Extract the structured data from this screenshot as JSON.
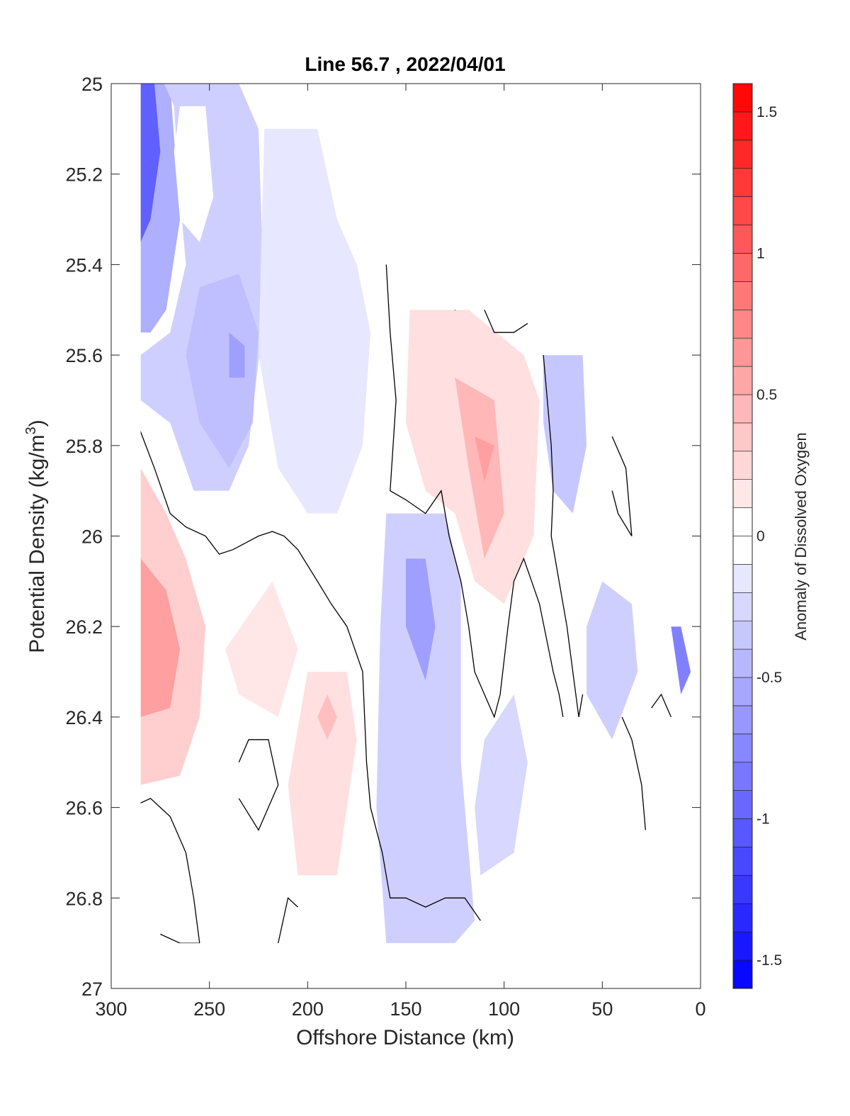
{
  "chart_data": {
    "type": "contour",
    "title": "Line 56.7 , 2022/04/01",
    "xlabel": "Offshore Distance (km)",
    "ylabel": "Potential Density (kg/m",
    "ylabel_sup": "3",
    "ylabel_close": ")",
    "colorbar_label": "Anomaly of Dissolved Oxygen",
    "xlim": [
      300,
      0
    ],
    "x_reversed": true,
    "ylim": [
      25,
      27
    ],
    "y_reversed": true,
    "x_ticks": [
      300,
      250,
      200,
      150,
      100,
      50,
      0
    ],
    "y_ticks": [
      25,
      25.2,
      25.4,
      25.6,
      25.8,
      26,
      26.2,
      26.4,
      26.6,
      26.8,
      27
    ],
    "y_tick_labels": [
      "25",
      "25.2",
      "25.4",
      "25.6",
      "25.8",
      "26",
      "26.2",
      "26.4",
      "26.6",
      "26.8",
      "27"
    ],
    "colorbar": {
      "range": [
        -1.6,
        1.6
      ],
      "step": 0.1,
      "ticks": [
        1.5,
        1,
        0.5,
        0,
        -0.5,
        -1,
        -1.5
      ],
      "tick_labels": [
        "1.5",
        "1",
        "0.5",
        "0",
        "-0.5",
        "-1",
        "-1.5"
      ],
      "color_negative": "#0000ff",
      "color_positive": "#ff0000",
      "color_zero": "#ffffff"
    },
    "grid": false,
    "zero_contour_color": "#000000",
    "regions": [
      {
        "value": -0.5,
        "points": [
          [
            285,
            25
          ],
          [
            270,
            25
          ],
          [
            265,
            25.3
          ],
          [
            272,
            25.5
          ],
          [
            280,
            25.55
          ],
          [
            285,
            25.55
          ]
        ]
      },
      {
        "value": -1.0,
        "points": [
          [
            285,
            25
          ],
          [
            278,
            25
          ],
          [
            275,
            25.15
          ],
          [
            280,
            25.3
          ],
          [
            285,
            25.35
          ]
        ]
      },
      {
        "value": -0.3,
        "points": [
          [
            273,
            25
          ],
          [
            235,
            25
          ],
          [
            225,
            25.1
          ],
          [
            222,
            25.5
          ],
          [
            230,
            25.8
          ],
          [
            240,
            25.9
          ],
          [
            258,
            25.9
          ],
          [
            270,
            25.75
          ],
          [
            285,
            25.7
          ],
          [
            285,
            25.6
          ],
          [
            270,
            25.55
          ],
          [
            262,
            25.4
          ],
          [
            265,
            25.25
          ],
          [
            268,
            25.05
          ]
        ]
      },
      {
        "value": 0.0,
        "points": [
          [
            265,
            25.05
          ],
          [
            252,
            25.05
          ],
          [
            248,
            25.25
          ],
          [
            255,
            25.35
          ],
          [
            265,
            25.3
          ],
          [
            268,
            25.15
          ]
        ]
      },
      {
        "value": -0.4,
        "points": [
          [
            255,
            25.45
          ],
          [
            235,
            25.42
          ],
          [
            225,
            25.55
          ],
          [
            228,
            25.75
          ],
          [
            240,
            25.85
          ],
          [
            255,
            25.75
          ],
          [
            262,
            25.6
          ]
        ]
      },
      {
        "value": -0.6,
        "points": [
          [
            240,
            25.55
          ],
          [
            232,
            25.58
          ],
          [
            232,
            25.65
          ],
          [
            240,
            25.65
          ]
        ]
      },
      {
        "value": -0.15,
        "points": [
          [
            222,
            25.1
          ],
          [
            195,
            25.1
          ],
          [
            185,
            25.3
          ],
          [
            175,
            25.4
          ],
          [
            168,
            25.55
          ],
          [
            172,
            25.8
          ],
          [
            185,
            25.95
          ],
          [
            200,
            25.95
          ],
          [
            215,
            25.85
          ],
          [
            225,
            25.6
          ]
        ]
      },
      {
        "value": 0.3,
        "points": [
          [
            285,
            25.85
          ],
          [
            285,
            26.55
          ],
          [
            265,
            26.53
          ],
          [
            255,
            26.4
          ],
          [
            252,
            26.2
          ],
          [
            262,
            26.05
          ],
          [
            272,
            25.95
          ]
        ]
      },
      {
        "value": 0.6,
        "points": [
          [
            285,
            26.05
          ],
          [
            285,
            26.4
          ],
          [
            270,
            26.38
          ],
          [
            265,
            26.25
          ],
          [
            272,
            26.12
          ]
        ]
      },
      {
        "value": 0.15,
        "points": [
          [
            242,
            26.25
          ],
          [
            218,
            26.1
          ],
          [
            205,
            26.25
          ],
          [
            215,
            26.4
          ],
          [
            235,
            26.35
          ]
        ]
      },
      {
        "value": 0.2,
        "points": [
          [
            200,
            26.3
          ],
          [
            180,
            26.3
          ],
          [
            175,
            26.45
          ],
          [
            185,
            26.75
          ],
          [
            205,
            26.75
          ],
          [
            210,
            26.55
          ]
        ]
      },
      {
        "value": 0.4,
        "points": [
          [
            190,
            26.35
          ],
          [
            185,
            26.4
          ],
          [
            190,
            26.45
          ],
          [
            195,
            26.4
          ]
        ]
      },
      {
        "value": -0.3,
        "points": [
          [
            160,
            25.95
          ],
          [
            130,
            25.95
          ],
          [
            122,
            26.1
          ],
          [
            122,
            26.5
          ],
          [
            115,
            26.85
          ],
          [
            125,
            26.9
          ],
          [
            160,
            26.9
          ],
          [
            165,
            26.6
          ],
          [
            163,
            26.2
          ]
        ]
      },
      {
        "value": -0.6,
        "points": [
          [
            150,
            26.05
          ],
          [
            140,
            26.05
          ],
          [
            135,
            26.2
          ],
          [
            140,
            26.32
          ],
          [
            150,
            26.2
          ]
        ]
      },
      {
        "value": 0.2,
        "points": [
          [
            148,
            25.5
          ],
          [
            118,
            25.5
          ],
          [
            90,
            25.6
          ],
          [
            82,
            25.7
          ],
          [
            85,
            26.0
          ],
          [
            100,
            26.15
          ],
          [
            115,
            26.1
          ],
          [
            125,
            25.95
          ],
          [
            140,
            25.9
          ],
          [
            150,
            25.75
          ]
        ]
      },
      {
        "value": 0.45,
        "points": [
          [
            125,
            25.65
          ],
          [
            105,
            25.7
          ],
          [
            100,
            25.95
          ],
          [
            110,
            26.05
          ],
          [
            118,
            25.85
          ]
        ]
      },
      {
        "value": 0.6,
        "points": [
          [
            115,
            25.78
          ],
          [
            105,
            25.8
          ],
          [
            110,
            25.88
          ]
        ]
      },
      {
        "value": -0.35,
        "points": [
          [
            80,
            25.6
          ],
          [
            60,
            25.6
          ],
          [
            58,
            25.8
          ],
          [
            65,
            25.95
          ],
          [
            75,
            25.9
          ],
          [
            80,
            25.75
          ]
        ]
      },
      {
        "value": -0.3,
        "points": [
          [
            50,
            26.1
          ],
          [
            35,
            26.15
          ],
          [
            32,
            26.3
          ],
          [
            45,
            26.45
          ],
          [
            58,
            26.35
          ],
          [
            58,
            26.2
          ]
        ]
      },
      {
        "value": -0.25,
        "points": [
          [
            110,
            26.45
          ],
          [
            95,
            26.35
          ],
          [
            88,
            26.5
          ],
          [
            95,
            26.7
          ],
          [
            112,
            26.75
          ],
          [
            115,
            26.6
          ]
        ]
      },
      {
        "value": -0.8,
        "points": [
          [
            35,
            25.8
          ],
          [
            25,
            25.9
          ],
          [
            15,
            26.2
          ],
          [
            10,
            26.35
          ],
          [
            5,
            26.3
          ],
          [
            10,
            26.2
          ]
        ]
      }
    ],
    "zero_contours": [
      [
        [
          290,
          25.8
        ],
        [
          285,
          25.77
        ],
        [
          278,
          25.85
        ],
        [
          270,
          25.95
        ],
        [
          262,
          25.98
        ],
        [
          252,
          26.0
        ],
        [
          245,
          26.04
        ],
        [
          238,
          26.03
        ],
        [
          225,
          26.0
        ],
        [
          218,
          25.99
        ],
        [
          212,
          26.0
        ],
        [
          205,
          26.03
        ],
        [
          195,
          26.1
        ],
        [
          188,
          26.15
        ],
        [
          180,
          26.2
        ],
        [
          172,
          26.3
        ],
        [
          170,
          26.5
        ],
        [
          168,
          26.6
        ],
        [
          162,
          26.7
        ],
        [
          158,
          26.8
        ],
        [
          150,
          26.8
        ],
        [
          140,
          26.82
        ],
        [
          130,
          26.8
        ],
        [
          120,
          26.8
        ],
        [
          112,
          26.85
        ]
      ],
      [
        [
          160,
          25.4
        ],
        [
          158,
          25.55
        ],
        [
          155,
          25.7
        ],
        [
          158,
          25.9
        ],
        [
          150,
          25.92
        ],
        [
          140,
          25.95
        ],
        [
          132,
          25.9
        ],
        [
          128,
          26.0
        ],
        [
          122,
          26.1
        ],
        [
          118,
          26.2
        ],
        [
          115,
          26.3
        ],
        [
          110,
          26.35
        ],
        [
          105,
          26.4
        ],
        [
          102,
          26.35
        ],
        [
          98,
          26.2
        ],
        [
          95,
          26.1
        ],
        [
          90,
          26.05
        ],
        [
          82,
          26.15
        ],
        [
          75,
          26.3
        ],
        [
          72,
          26.35
        ],
        [
          70,
          26.4
        ]
      ],
      [
        [
          80,
          25.6
        ],
        [
          78,
          25.7
        ],
        [
          76,
          25.8
        ],
        [
          75,
          25.9
        ],
        [
          76,
          26.0
        ],
        [
          72,
          26.1
        ],
        [
          68,
          26.2
        ],
        [
          65,
          26.3
        ],
        [
          62,
          26.4
        ],
        [
          60,
          26.35
        ]
      ],
      [
        [
          110,
          25.5
        ],
        [
          105,
          25.55
        ],
        [
          95,
          25.55
        ],
        [
          88,
          25.53
        ]
      ],
      [
        [
          130,
          25.45
        ],
        [
          125,
          25.5
        ],
        [
          120,
          25.48
        ]
      ],
      [
        [
          45,
          25.78
        ],
        [
          38,
          25.85
        ],
        [
          35,
          26.0
        ],
        [
          42,
          25.95
        ],
        [
          45,
          25.9
        ]
      ],
      [
        [
          235,
          26.5
        ],
        [
          230,
          26.45
        ],
        [
          220,
          26.45
        ],
        [
          215,
          26.55
        ],
        [
          225,
          26.65
        ],
        [
          235,
          26.58
        ]
      ],
      [
        [
          290,
          26.6
        ],
        [
          280,
          26.58
        ],
        [
          270,
          26.62
        ],
        [
          262,
          26.7
        ],
        [
          258,
          26.8
        ],
        [
          255,
          26.9
        ]
      ],
      [
        [
          275,
          26.88
        ],
        [
          265,
          26.9
        ],
        [
          255,
          26.9
        ]
      ],
      [
        [
          215,
          26.9
        ],
        [
          210,
          26.8
        ],
        [
          205,
          26.82
        ]
      ],
      [
        [
          40,
          26.4
        ],
        [
          35,
          26.45
        ],
        [
          30,
          26.55
        ],
        [
          28,
          26.65
        ]
      ],
      [
        [
          15,
          26.4
        ],
        [
          20,
          26.35
        ],
        [
          25,
          26.38
        ]
      ]
    ],
    "mask_regions": [
      [
        [
          300,
          25
        ],
        [
          285,
          25
        ],
        [
          285,
          27
        ],
        [
          300,
          27
        ]
      ],
      [
        [
          285,
          26.9
        ],
        [
          0,
          26.9
        ],
        [
          0,
          27
        ],
        [
          285,
          27
        ]
      ],
      [
        [
          170,
          25
        ],
        [
          0,
          25
        ],
        [
          0,
          25.4
        ],
        [
          170,
          25.4
        ]
      ],
      [
        [
          150,
          25.4
        ],
        [
          0,
          25.4
        ],
        [
          0,
          25.6
        ],
        [
          78,
          25.6
        ],
        [
          78,
          25.5
        ],
        [
          150,
          25.5
        ]
      ],
      [
        [
          80,
          25.6
        ],
        [
          55,
          25.6
        ],
        [
          45,
          25.7
        ],
        [
          35,
          25.85
        ],
        [
          20,
          26.2
        ],
        [
          8,
          26.2
        ],
        [
          5,
          26.3
        ],
        [
          8,
          26.4
        ],
        [
          0,
          26.4
        ],
        [
          0,
          25.6
        ]
      ],
      [
        [
          170,
          25.1
        ],
        [
          165,
          25.1
        ],
        [
          168,
          25.3
        ],
        [
          170,
          25.3
        ]
      ]
    ]
  }
}
